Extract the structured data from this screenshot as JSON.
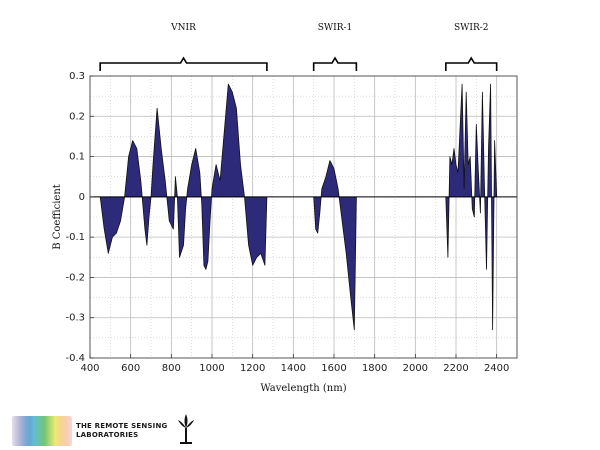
{
  "chart_data": {
    "type": "area",
    "xlabel": "Wavelength (nm)",
    "ylabel": "B Coefficient",
    "xlim": [
      400,
      2500
    ],
    "ylim": [
      -0.4,
      0.3
    ],
    "xticks": [
      400,
      600,
      800,
      1000,
      1200,
      1400,
      1600,
      1800,
      2000,
      2200,
      2400
    ],
    "yticks": [
      -0.4,
      -0.3,
      -0.2,
      -0.1,
      0,
      0.1,
      0.2,
      0.3
    ],
    "grid": true,
    "fill_color": "#2e2a7a",
    "regions": [
      {
        "label": "VNIR",
        "range": [
          450,
          1270
        ]
      },
      {
        "label": "SWIR-1",
        "range": [
          1500,
          1710
        ]
      },
      {
        "label": "SWIR-2",
        "range": [
          2150,
          2400
        ]
      }
    ],
    "series": [
      {
        "values": [
          [
            450,
            0
          ],
          [
            470,
            -0.08
          ],
          [
            490,
            -0.14
          ],
          [
            510,
            -0.1
          ],
          [
            530,
            -0.09
          ],
          [
            550,
            -0.06
          ],
          [
            570,
            0
          ],
          [
            590,
            0.1
          ],
          [
            610,
            0.14
          ],
          [
            630,
            0.12
          ],
          [
            650,
            0.04
          ],
          [
            670,
            -0.08
          ],
          [
            680,
            -0.12
          ],
          [
            690,
            -0.05
          ],
          [
            700,
            0
          ],
          [
            710,
            0.08
          ],
          [
            730,
            0.22
          ],
          [
            750,
            0.12
          ],
          [
            770,
            0.04
          ],
          [
            790,
            -0.06
          ],
          [
            810,
            -0.08
          ],
          [
            820,
            0.05
          ],
          [
            830,
            0
          ],
          [
            840,
            -0.15
          ],
          [
            860,
            -0.12
          ],
          [
            870,
            -0.03
          ],
          [
            880,
            0.02
          ],
          [
            900,
            0.08
          ],
          [
            920,
            0.12
          ],
          [
            940,
            0.06
          ],
          [
            950,
            -0.02
          ],
          [
            960,
            -0.17
          ],
          [
            970,
            -0.18
          ],
          [
            980,
            -0.16
          ],
          [
            990,
            -0.06
          ],
          [
            1000,
            0.02
          ],
          [
            1020,
            0.08
          ],
          [
            1040,
            0.04
          ],
          [
            1060,
            0.16
          ],
          [
            1080,
            0.28
          ],
          [
            1100,
            0.26
          ],
          [
            1120,
            0.22
          ],
          [
            1140,
            0.08
          ],
          [
            1160,
            0
          ],
          [
            1180,
            -0.12
          ],
          [
            1200,
            -0.17
          ],
          [
            1220,
            -0.15
          ],
          [
            1240,
            -0.14
          ],
          [
            1260,
            -0.17
          ],
          [
            1270,
            0
          ],
          [
            1500,
            0
          ],
          [
            1510,
            -0.08
          ],
          [
            1520,
            -0.09
          ],
          [
            1530,
            -0.04
          ],
          [
            1540,
            0.02
          ],
          [
            1560,
            0.05
          ],
          [
            1580,
            0.09
          ],
          [
            1600,
            0.07
          ],
          [
            1620,
            0.02
          ],
          [
            1640,
            -0.06
          ],
          [
            1660,
            -0.14
          ],
          [
            1680,
            -0.24
          ],
          [
            1700,
            -0.33
          ],
          [
            1710,
            0
          ],
          [
            2150,
            0
          ],
          [
            2160,
            -0.15
          ],
          [
            2170,
            0.1
          ],
          [
            2180,
            0.08
          ],
          [
            2190,
            0.12
          ],
          [
            2200,
            0.08
          ],
          [
            2210,
            0.06
          ],
          [
            2230,
            0.28
          ],
          [
            2240,
            0.02
          ],
          [
            2250,
            0.26
          ],
          [
            2260,
            0.08
          ],
          [
            2270,
            0.1
          ],
          [
            2280,
            -0.03
          ],
          [
            2290,
            -0.05
          ],
          [
            2300,
            0.18
          ],
          [
            2310,
            0.06
          ],
          [
            2320,
            -0.04
          ],
          [
            2330,
            0.26
          ],
          [
            2340,
            0.02
          ],
          [
            2350,
            -0.18
          ],
          [
            2360,
            0.12
          ],
          [
            2370,
            0.28
          ],
          [
            2380,
            -0.33
          ],
          [
            2390,
            0.14
          ],
          [
            2400,
            0
          ]
        ]
      }
    ]
  },
  "logo": {
    "line1": "THE REMOTE SENSING",
    "line2": "LABORATORIES"
  }
}
